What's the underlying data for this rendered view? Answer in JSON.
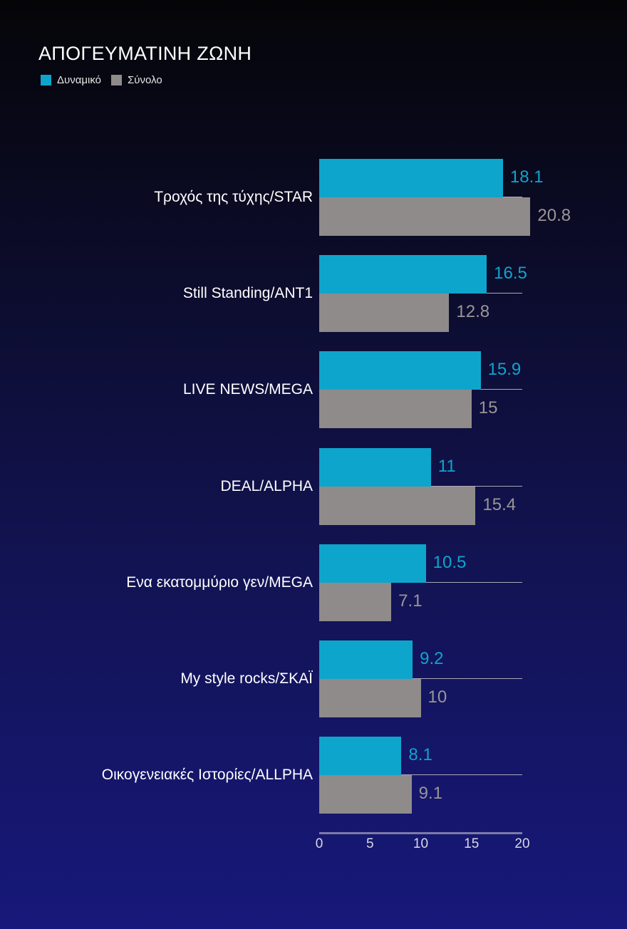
{
  "chart_data": {
    "type": "bar",
    "orientation": "horizontal",
    "title": "ΑΠΟΓΕΥΜΑΤΙΝΗ ΖΩΝΗ",
    "xlabel": "",
    "ylabel": "",
    "xlim": [
      0,
      20
    ],
    "xticks": [
      "0",
      "5",
      "10",
      "15",
      "20"
    ],
    "grid": false,
    "legend_position": "top-left",
    "categories": [
      "Τροχός της τύχης/STAR",
      "Still Standing/ANT1",
      "LIVE NEWS/MEGA",
      "DEAL/ALPHA",
      "Ενα εκατομμύριο γεν/MEGA",
      "My style rocks/ΣΚΑΪ",
      "Οικογενειακές Ιστορίες/ALLPHA"
    ],
    "series": [
      {
        "name": "Δυναμικό",
        "color": "#0ea5cc",
        "values": [
          18.1,
          16.5,
          15.9,
          11,
          10.5,
          9.2,
          8.1
        ],
        "labels": [
          "18.1",
          "16.5",
          "15.9",
          "11",
          "10.5",
          "9.2",
          "8.1"
        ]
      },
      {
        "name": "Σύνολο",
        "color": "#8f8b8a",
        "values": [
          20.8,
          12.8,
          15,
          15.4,
          7.1,
          10,
          9.1
        ],
        "labels": [
          "20.8",
          "12.8",
          "15",
          "15.4",
          "7.1",
          "10",
          "9.1"
        ]
      }
    ]
  },
  "colors": {
    "series_a": "#0ea5cc",
    "series_b": "#8f8b8a",
    "label_a": "#0ea5cc",
    "label_b": "#9a9696"
  }
}
